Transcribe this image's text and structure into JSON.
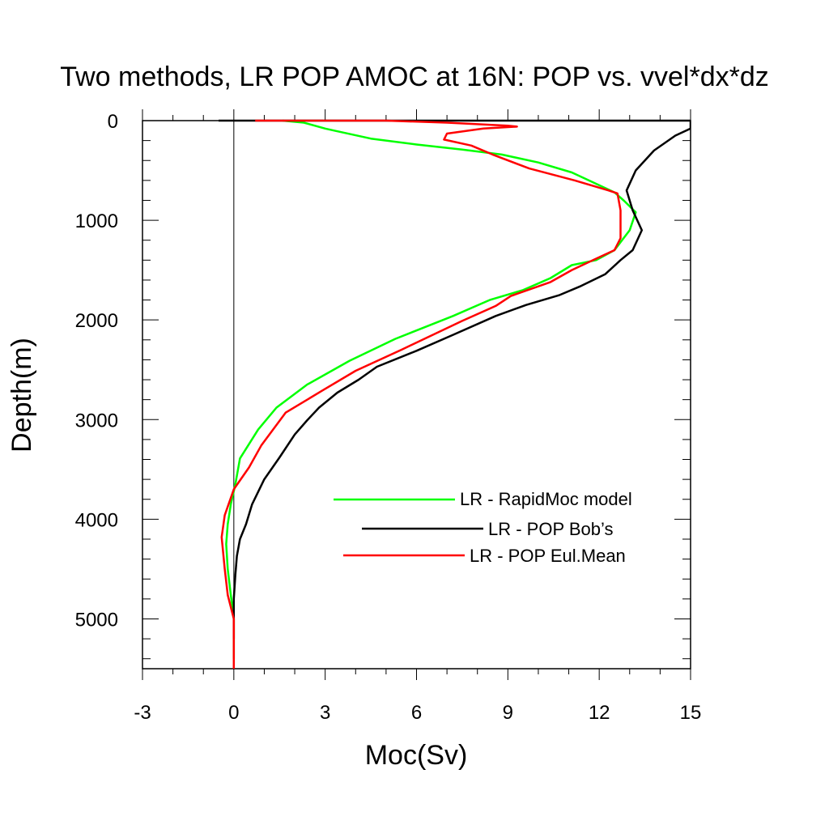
{
  "chart_data": {
    "type": "line",
    "title": "Two methods, LR POP AMOC at 16N: POP vs. vvel*dx*dz",
    "xlabel": "Moc(Sv)",
    "ylabel": "Depth(m)",
    "xlim": [
      -3,
      15
    ],
    "ylim": [
      0,
      5500
    ],
    "y_inverted": true,
    "x_ticks": [
      -3,
      0,
      3,
      6,
      9,
      12,
      15
    ],
    "x_tick_labels": [
      "-3",
      "0",
      "3",
      "6",
      "9",
      "12",
      "15"
    ],
    "y_ticks": [
      0,
      1000,
      2000,
      3000,
      4000,
      5000
    ],
    "y_tick_labels": [
      "0",
      "1000",
      "2000",
      "3000",
      "4000",
      "5000"
    ],
    "zero_reference_line": true,
    "legend_position": "inside-lower-right",
    "series": [
      {
        "name": "LR - RapidMoc model",
        "color": "#00ff00",
        "points": [
          [
            1.6,
            0
          ],
          [
            2.3,
            20
          ],
          [
            3.0,
            80
          ],
          [
            3.3,
            100
          ],
          [
            4.5,
            180
          ],
          [
            6.0,
            240
          ],
          [
            7.5,
            290
          ],
          [
            8.8,
            340
          ],
          [
            10.0,
            420
          ],
          [
            11.1,
            520
          ],
          [
            11.8,
            620
          ],
          [
            12.5,
            720
          ],
          [
            12.8,
            800
          ],
          [
            13.2,
            920
          ],
          [
            13.0,
            1100
          ],
          [
            12.5,
            1300
          ],
          [
            11.9,
            1400
          ],
          [
            11.1,
            1450
          ],
          [
            10.4,
            1580
          ],
          [
            9.5,
            1700
          ],
          [
            8.4,
            1800
          ],
          [
            7.2,
            1960
          ],
          [
            5.3,
            2190
          ],
          [
            3.8,
            2410
          ],
          [
            2.4,
            2650
          ],
          [
            1.4,
            2880
          ],
          [
            0.8,
            3100
          ],
          [
            0.2,
            3390
          ],
          [
            0.05,
            3650
          ],
          [
            -0.1,
            3850
          ],
          [
            -0.2,
            4050
          ],
          [
            -0.25,
            4250
          ],
          [
            -0.2,
            4500
          ],
          [
            -0.1,
            4760
          ],
          [
            0.0,
            5000
          ],
          [
            0.0,
            5250
          ],
          [
            0.0,
            5400
          ]
        ]
      },
      {
        "name": "LR - POP Bob’s",
        "color": "#000000",
        "points": [
          [
            -0.5,
            0
          ],
          [
            0.5,
            0
          ],
          [
            5.0,
            0
          ],
          [
            15.0,
            0
          ],
          [
            15.0,
            80
          ],
          [
            14.5,
            150
          ],
          [
            13.8,
            300
          ],
          [
            13.2,
            500
          ],
          [
            12.9,
            700
          ],
          [
            13.1,
            900
          ],
          [
            13.4,
            1100
          ],
          [
            13.1,
            1300
          ],
          [
            12.7,
            1400
          ],
          [
            12.2,
            1540
          ],
          [
            11.4,
            1660
          ],
          [
            10.7,
            1750
          ],
          [
            9.6,
            1850
          ],
          [
            8.6,
            1960
          ],
          [
            7.2,
            2150
          ],
          [
            6.0,
            2310
          ],
          [
            4.7,
            2470
          ],
          [
            4.1,
            2600
          ],
          [
            3.4,
            2730
          ],
          [
            2.8,
            2880
          ],
          [
            2.4,
            3010
          ],
          [
            2.0,
            3150
          ],
          [
            1.5,
            3380
          ],
          [
            1.0,
            3600
          ],
          [
            0.6,
            3850
          ],
          [
            0.4,
            4050
          ],
          [
            0.2,
            4200
          ],
          [
            0.1,
            4370
          ],
          [
            0.05,
            4560
          ],
          [
            0.0,
            4800
          ],
          [
            0.0,
            5000
          ],
          [
            0.0,
            5200
          ]
        ]
      },
      {
        "name": "LR - POP Eul.Mean",
        "color": "#ff0000",
        "points": [
          [
            0.7,
            0
          ],
          [
            3.0,
            0
          ],
          [
            5.0,
            0
          ],
          [
            7.0,
            20
          ],
          [
            9.0,
            50
          ],
          [
            9.3,
            60
          ],
          [
            8.2,
            80
          ],
          [
            7.0,
            130
          ],
          [
            6.9,
            190
          ],
          [
            7.8,
            250
          ],
          [
            8.5,
            340
          ],
          [
            9.7,
            480
          ],
          [
            11.2,
            600
          ],
          [
            12.3,
            700
          ],
          [
            12.6,
            730
          ],
          [
            12.7,
            900
          ],
          [
            12.7,
            1180
          ],
          [
            12.5,
            1300
          ],
          [
            11.8,
            1400
          ],
          [
            11.1,
            1500
          ],
          [
            10.4,
            1620
          ],
          [
            9.1,
            1760
          ],
          [
            8.6,
            1860
          ],
          [
            7.5,
            2010
          ],
          [
            5.5,
            2300
          ],
          [
            4.0,
            2510
          ],
          [
            2.9,
            2710
          ],
          [
            1.7,
            2930
          ],
          [
            0.9,
            3260
          ],
          [
            0.5,
            3480
          ],
          [
            0.0,
            3700
          ],
          [
            -0.3,
            3960
          ],
          [
            -0.4,
            4180
          ],
          [
            -0.3,
            4500
          ],
          [
            -0.2,
            4760
          ],
          [
            0.0,
            5000
          ],
          [
            0.0,
            5250
          ],
          [
            0.0,
            5500
          ]
        ]
      }
    ]
  }
}
